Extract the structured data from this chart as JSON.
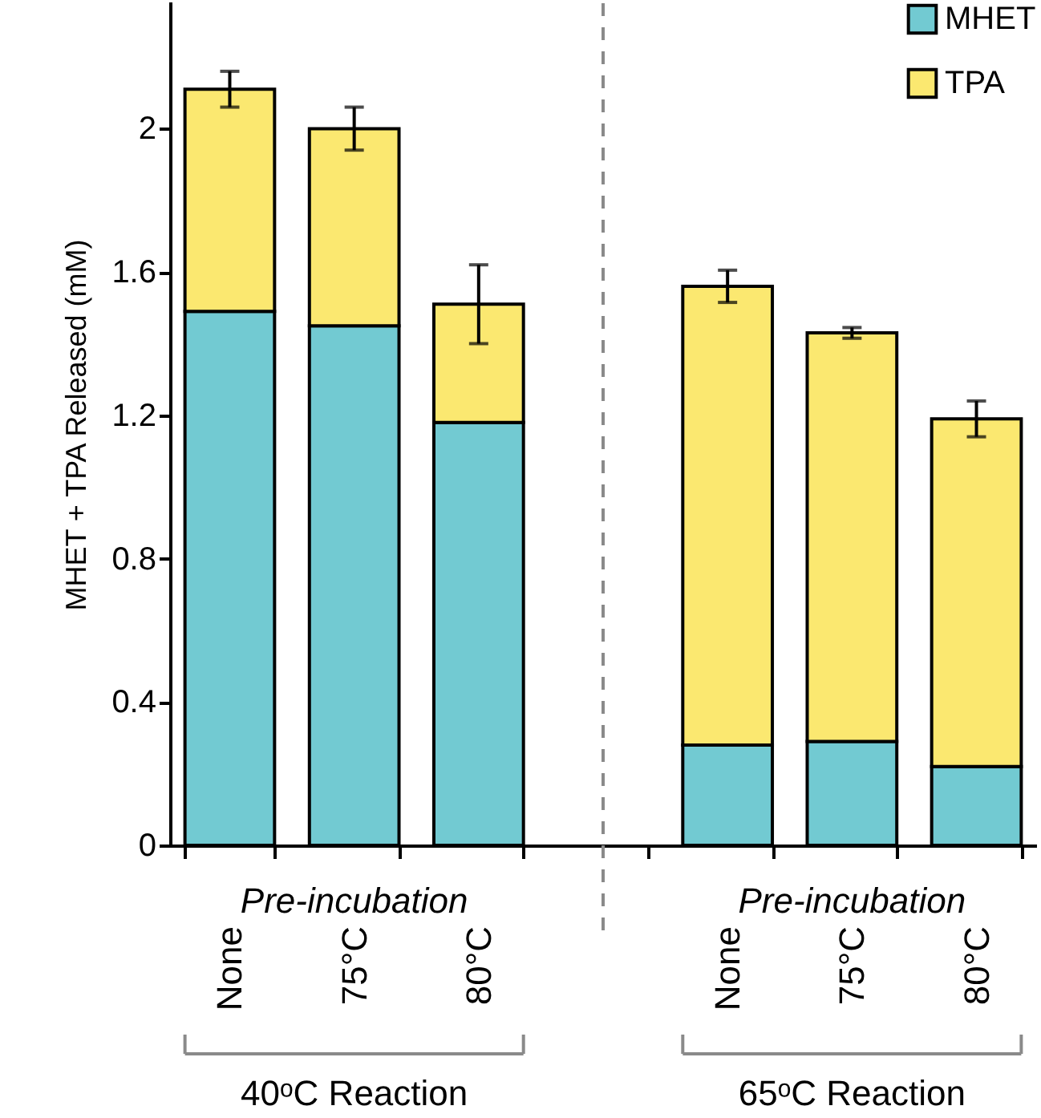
{
  "chart_data": {
    "type": "bar",
    "stacked": true,
    "categories": [
      "None",
      "75°C",
      "80°C",
      null,
      "None",
      "75°C",
      "80°C"
    ],
    "series": [
      {
        "name": "MHET",
        "color": "#72cad2",
        "values": [
          1.49,
          1.45,
          1.18,
          null,
          0.28,
          0.29,
          0.22
        ]
      },
      {
        "name": "TPA",
        "color": "#fbe870",
        "values": [
          0.62,
          0.55,
          0.33,
          null,
          1.28,
          1.14,
          0.97
        ],
        "errors": [
          0.05,
          0.06,
          0.11,
          null,
          0.045,
          0.015,
          0.05
        ]
      }
    ],
    "ylabel": "MHET + TPA Released (mM)",
    "ylim": [
      0,
      2.35
    ],
    "yticks": [
      0,
      0.4,
      0.8,
      1.2,
      1.6,
      2
    ],
    "legend": "top right",
    "annotations": [
      "Pre-incubation",
      "Pre-incubation",
      "40ᵒC Reaction",
      "65ᵒC Reaction"
    ]
  }
}
